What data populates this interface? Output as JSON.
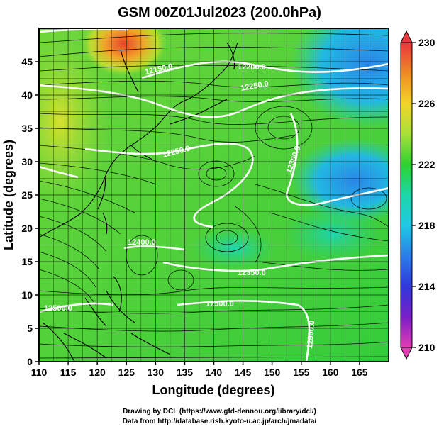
{
  "title": "GSM 00Z01Jul2023 (200.0hPa)",
  "xlabel": "Longitude (degrees)",
  "ylabel": "Latitude  (degrees)",
  "x_ticks": [
    "110",
    "115",
    "120",
    "125",
    "130",
    "135",
    "140",
    "145",
    "150",
    "155",
    "160",
    "165"
  ],
  "y_ticks": [
    "0",
    "5",
    "10",
    "15",
    "20",
    "25",
    "30",
    "35",
    "40",
    "45"
  ],
  "colorbar": {
    "ticks": [
      "230",
      "226",
      "222",
      "218",
      "214",
      "210"
    ],
    "stops": [
      {
        "v": 230,
        "color": "#e8373d"
      },
      {
        "v": 228,
        "color": "#f08a24"
      },
      {
        "v": 226,
        "color": "#f2d42a"
      },
      {
        "v": 224,
        "color": "#a8e03a"
      },
      {
        "v": 222,
        "color": "#2ed22e"
      },
      {
        "v": 220,
        "color": "#1ed6a8"
      },
      {
        "v": 218,
        "color": "#20c8e6"
      },
      {
        "v": 216,
        "color": "#2a7ee8"
      },
      {
        "v": 214,
        "color": "#2f38d8"
      },
      {
        "v": 212,
        "color": "#7a1ec8"
      },
      {
        "v": 210,
        "color": "#e23cb4"
      }
    ]
  },
  "contour_labels": [
    "12150.0",
    "12200.0",
    "12250.0",
    "12250.0",
    "12300.0",
    "12350.0",
    "12400.0",
    "12500.0",
    "12500.0",
    "12500.0"
  ],
  "credits": [
    "Drawing by DCL (https://www.gfd-dennou.org/library/dcl/)",
    "Data from http://database.rish.kyoto-u.ac.jp/arch/jmadata/"
  ]
}
